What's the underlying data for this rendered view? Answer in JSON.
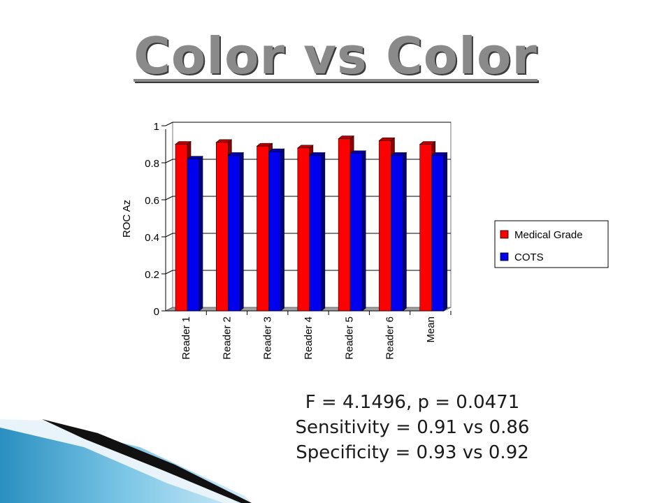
{
  "title": "Color vs Color",
  "chart_data": {
    "type": "bar",
    "categories": [
      "Reader 1",
      "Reader 2",
      "Reader 3",
      "Reader 4",
      "Reader 5",
      "Reader 6",
      "Mean"
    ],
    "series": [
      {
        "name": "Medical Grade",
        "color": "#ff0000",
        "values": [
          0.9,
          0.91,
          0.89,
          0.88,
          0.93,
          0.92,
          0.9
        ]
      },
      {
        "name": "COTS",
        "color": "#0000ee",
        "values": [
          0.82,
          0.84,
          0.86,
          0.84,
          0.85,
          0.84,
          0.84
        ]
      }
    ],
    "ylabel": "ROC Az",
    "xlabel": "",
    "ylim": [
      0,
      1
    ],
    "yticks": [
      "0",
      "0.2",
      "0.4",
      "0.6",
      "0.8",
      "1"
    ],
    "grid": true,
    "legend_position": "right"
  },
  "stats": {
    "line1": "F = 4.1496, p = 0.0471",
    "line2": "Sensitivity = 0.91 vs 0.86",
    "line3": "Specificity = 0.93 vs 0.92"
  }
}
